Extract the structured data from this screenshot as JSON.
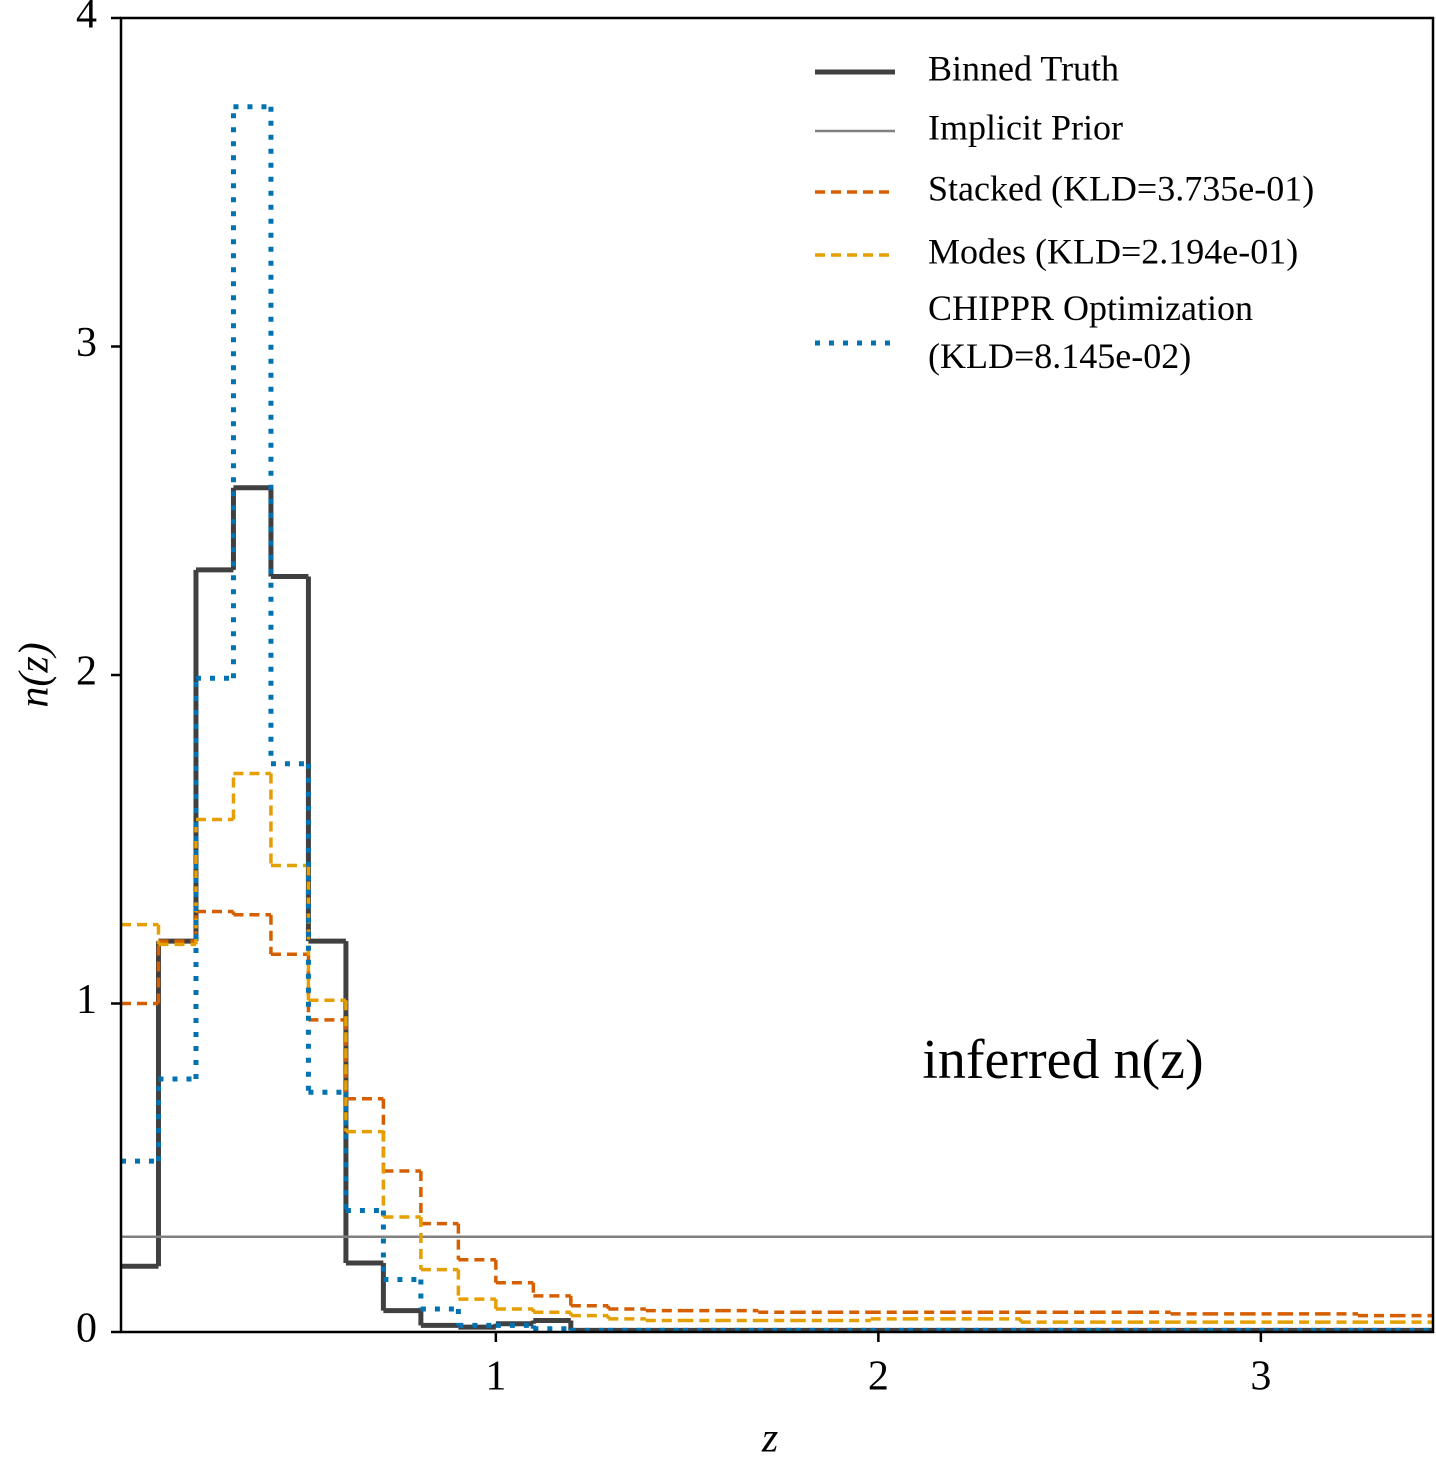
{
  "chart_data": {
    "type": "step-histogram",
    "xlabel": "z",
    "ylabel": "n(z)",
    "annotation": "inferred n(z)",
    "xlim": [
      0.02,
      3.45
    ],
    "ylim": [
      0,
      4
    ],
    "xticks": [
      1,
      2,
      3
    ],
    "yticks": [
      0,
      1,
      2,
      3,
      4
    ],
    "legend": "upper right",
    "bins": [
      0.02,
      0.118,
      0.216,
      0.314,
      0.412,
      0.51,
      0.608,
      0.706,
      0.804,
      0.902,
      1.0,
      1.098,
      1.196,
      1.294,
      1.392,
      1.49,
      1.588,
      1.686,
      1.784,
      1.882,
      1.98,
      2.078,
      2.176,
      2.274,
      2.372,
      2.47,
      2.568,
      2.666,
      2.764,
      2.862,
      2.96,
      3.058,
      3.156,
      3.254,
      3.352,
      3.45
    ],
    "series": [
      {
        "name": "Binned Truth",
        "color": "#404040",
        "style": "solid",
        "values": [
          0.2,
          1.19,
          2.32,
          2.57,
          2.3,
          1.19,
          0.21,
          0.065,
          0.02,
          0.015,
          0.025,
          0.035,
          0.005,
          0.005,
          0.005,
          0.005,
          0.005,
          0.005,
          0.005,
          0.005,
          0.005,
          0.005,
          0.005,
          0.005,
          0.005,
          0.005,
          0.005,
          0.005,
          0.005,
          0.005,
          0.005,
          0.005,
          0.005,
          0.005,
          0.005
        ]
      },
      {
        "name": "Implicit Prior",
        "color": "#808080",
        "style": "thin",
        "value": 0.29
      },
      {
        "name": "Stacked (KLD=3.735e-01)",
        "color": "#d55e00",
        "style": "dashed",
        "values": [
          1.0,
          1.19,
          1.28,
          1.27,
          1.15,
          0.95,
          0.71,
          0.49,
          0.33,
          0.22,
          0.15,
          0.11,
          0.08,
          0.07,
          0.065,
          0.065,
          0.065,
          0.06,
          0.06,
          0.06,
          0.06,
          0.06,
          0.06,
          0.06,
          0.06,
          0.06,
          0.06,
          0.06,
          0.055,
          0.055,
          0.055,
          0.055,
          0.055,
          0.05,
          0.05
        ]
      },
      {
        "name": "Modes (KLD=2.194e-01)",
        "color": "#e69f00",
        "style": "dashed",
        "values": [
          1.24,
          1.18,
          1.56,
          1.7,
          1.42,
          1.01,
          0.61,
          0.35,
          0.19,
          0.1,
          0.07,
          0.06,
          0.05,
          0.04,
          0.035,
          0.035,
          0.035,
          0.035,
          0.035,
          0.035,
          0.04,
          0.04,
          0.04,
          0.04,
          0.03,
          0.03,
          0.03,
          0.03,
          0.03,
          0.03,
          0.03,
          0.03,
          0.03,
          0.03,
          0.03
        ]
      },
      {
        "name": "CHIPPR Optimization (KLD=8.145e-02)",
        "color": "#0072b2",
        "style": "dotted",
        "values": [
          0.52,
          0.77,
          1.99,
          3.73,
          1.73,
          0.73,
          0.37,
          0.16,
          0.07,
          0.02,
          0.02,
          0.01,
          0.005,
          0.005,
          0.005,
          0.005,
          0.005,
          0.005,
          0.005,
          0.005,
          0.005,
          0.005,
          0.005,
          0.005,
          0.005,
          0.005,
          0.005,
          0.005,
          0.005,
          0.005,
          0.005,
          0.005,
          0.005,
          0.005,
          0.005
        ]
      }
    ]
  }
}
